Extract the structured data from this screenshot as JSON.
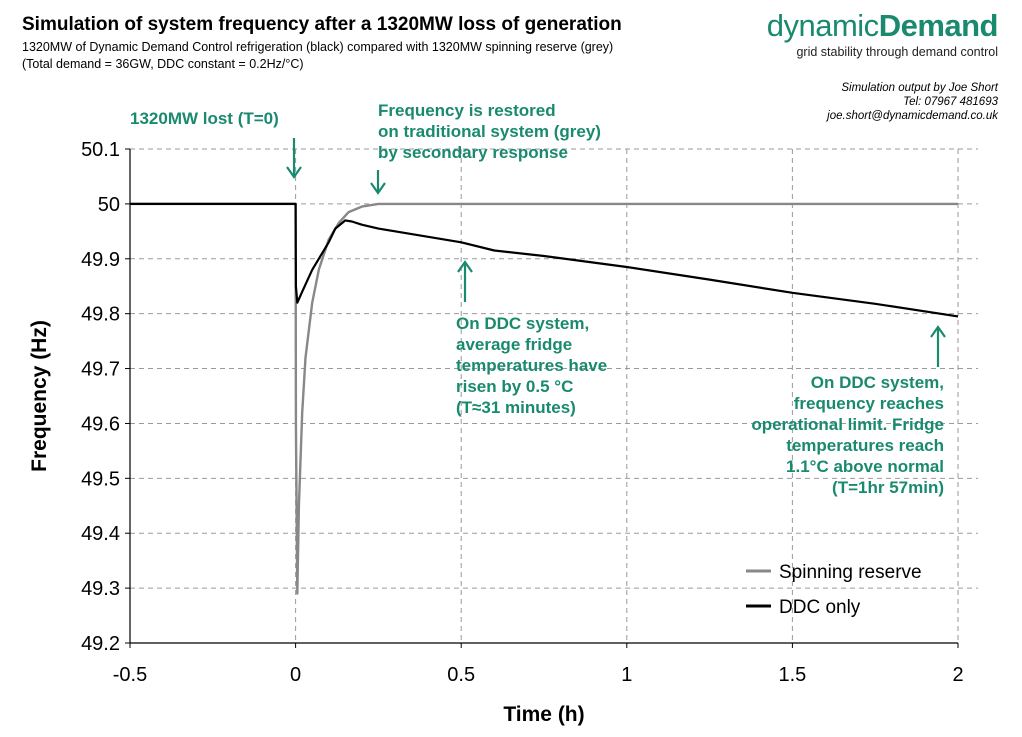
{
  "header": {
    "title": "Simulation of system frequency after a 1320MW loss of generation",
    "subtitle1": "1320MW of Dynamic Demand Control refrigeration (black) compared with 1320MW spinning reserve (grey)",
    "subtitle2": "(Total demand = 36GW, DDC constant = 0.2Hz/°C)"
  },
  "brand": {
    "name_light": "dynamic",
    "name_bold": "Demand",
    "tagline": "grid stability through demand control",
    "color": "#1a8a6e"
  },
  "credits": {
    "line1": "Simulation output by Joe Short",
    "line2": "Tel: 07967 481693",
    "line3": "joe.short@dynamicdemand.co.uk"
  },
  "chart_data": {
    "type": "line",
    "xlabel": "Time (h)",
    "ylabel": "Frequency (Hz)",
    "xlim": [
      -0.5,
      2
    ],
    "ylim": [
      49.2,
      50.1
    ],
    "x_ticks": [
      -0.5,
      0,
      0.5,
      1,
      1.5,
      2
    ],
    "x_tick_labels": [
      "-0.5",
      "0",
      "0.5",
      "1",
      "1.5",
      "2"
    ],
    "y_ticks": [
      49.2,
      49.3,
      49.4,
      49.5,
      49.6,
      49.7,
      49.8,
      49.9,
      50,
      50.1
    ],
    "y_tick_labels": [
      "49.2",
      "49.3",
      "49.4",
      "49.5",
      "49.6",
      "49.7",
      "49.8",
      "49.9",
      "50",
      "50.1"
    ],
    "grid": "dashed",
    "legend_position": "bottom-right",
    "series": [
      {
        "name": "Spinning reserve",
        "color": "#888888",
        "x": [
          -0.5,
          0,
          0.001,
          0.005,
          0.01,
          0.02,
          0.03,
          0.05,
          0.07,
          0.1,
          0.13,
          0.16,
          0.2,
          0.25,
          0.3,
          0.5,
          1,
          1.5,
          2
        ],
        "y": [
          50.0,
          50.0,
          49.6,
          49.29,
          49.45,
          49.62,
          49.72,
          49.82,
          49.88,
          49.935,
          49.965,
          49.985,
          49.995,
          50.0,
          50.0,
          50.0,
          50.0,
          50.0,
          50.0
        ]
      },
      {
        "name": "DDC only",
        "color": "#000000",
        "x": [
          -0.5,
          0,
          0.001,
          0.005,
          0.02,
          0.05,
          0.08,
          0.1,
          0.12,
          0.15,
          0.17,
          0.2,
          0.25,
          0.3,
          0.4,
          0.5,
          0.6,
          0.75,
          1,
          1.25,
          1.5,
          1.75,
          2
        ],
        "y": [
          50.0,
          50.0,
          49.85,
          49.82,
          49.84,
          49.88,
          49.91,
          49.93,
          49.955,
          49.97,
          49.968,
          49.962,
          49.955,
          49.95,
          49.94,
          49.93,
          49.915,
          49.905,
          49.885,
          49.862,
          49.838,
          49.818,
          49.795
        ]
      }
    ],
    "annotations": [
      {
        "text": "1320MW lost (T=0)"
      },
      {
        "text": "Frequency is restored on traditional system (grey) by secondary response"
      },
      {
        "text": "On DDC system, average fridge temperatures have risen by 0.5 °C (T≈31 minutes)"
      },
      {
        "text": "On DDC system, frequency reaches operational limit. Fridge temperatures reach 1.1°C above normal (T=1hr 57min)"
      }
    ],
    "annotation_lines": [
      [
        "1320MW lost (T=0)"
      ],
      [
        "Frequency is restored",
        "on traditional system (grey)",
        "by secondary response"
      ],
      [
        "On DDC system,",
        "average fridge",
        "temperatures have",
        "risen by 0.5 °C",
        "(T≈31 minutes)"
      ],
      [
        "On DDC system,",
        "frequency reaches",
        "operational limit. Fridge",
        "temperatures reach",
        "1.1°C above normal",
        "(T=1hr 57min)"
      ]
    ],
    "annotation_color": "#1a8a6e"
  }
}
